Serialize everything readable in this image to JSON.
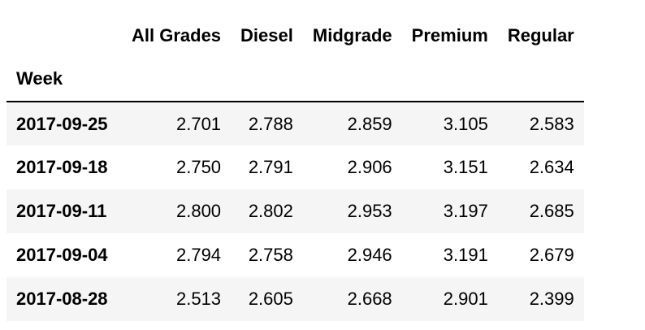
{
  "table": {
    "index_name": "Week",
    "columns": [
      "All Grades",
      "Diesel",
      "Midgrade",
      "Premium",
      "Regular"
    ],
    "rows": [
      {
        "index": "2017-09-25",
        "values": [
          "2.701",
          "2.788",
          "2.859",
          "3.105",
          "2.583"
        ]
      },
      {
        "index": "2017-09-18",
        "values": [
          "2.750",
          "2.791",
          "2.906",
          "3.151",
          "2.634"
        ]
      },
      {
        "index": "2017-09-11",
        "values": [
          "2.800",
          "2.802",
          "2.953",
          "3.197",
          "2.685"
        ]
      },
      {
        "index": "2017-09-04",
        "values": [
          "2.794",
          "2.758",
          "2.946",
          "3.191",
          "2.679"
        ]
      },
      {
        "index": "2017-08-28",
        "values": [
          "2.513",
          "2.605",
          "2.668",
          "2.901",
          "2.399"
        ]
      }
    ]
  }
}
